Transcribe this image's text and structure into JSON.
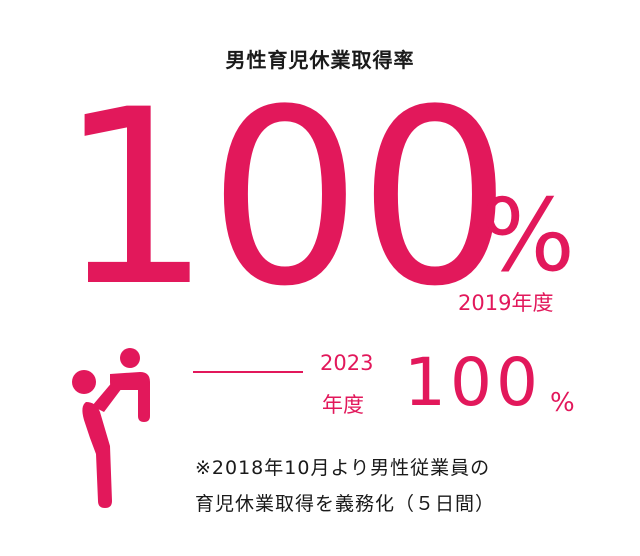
{
  "title": "男性育児休業取得率",
  "main": {
    "value": "100",
    "unit": "%",
    "year": "2019年度"
  },
  "secondary": {
    "year_line1": "2023",
    "year_line2": "年度",
    "value": "100",
    "unit": "%"
  },
  "note": {
    "line1": "※2018年10月より男性従業員の",
    "line2": "育児休業取得を義務化（５日間）"
  },
  "colors": {
    "accent": "#e2185b",
    "text": "#1a1a1a"
  },
  "icons": {
    "figure": "parent-lifting-child-icon"
  }
}
